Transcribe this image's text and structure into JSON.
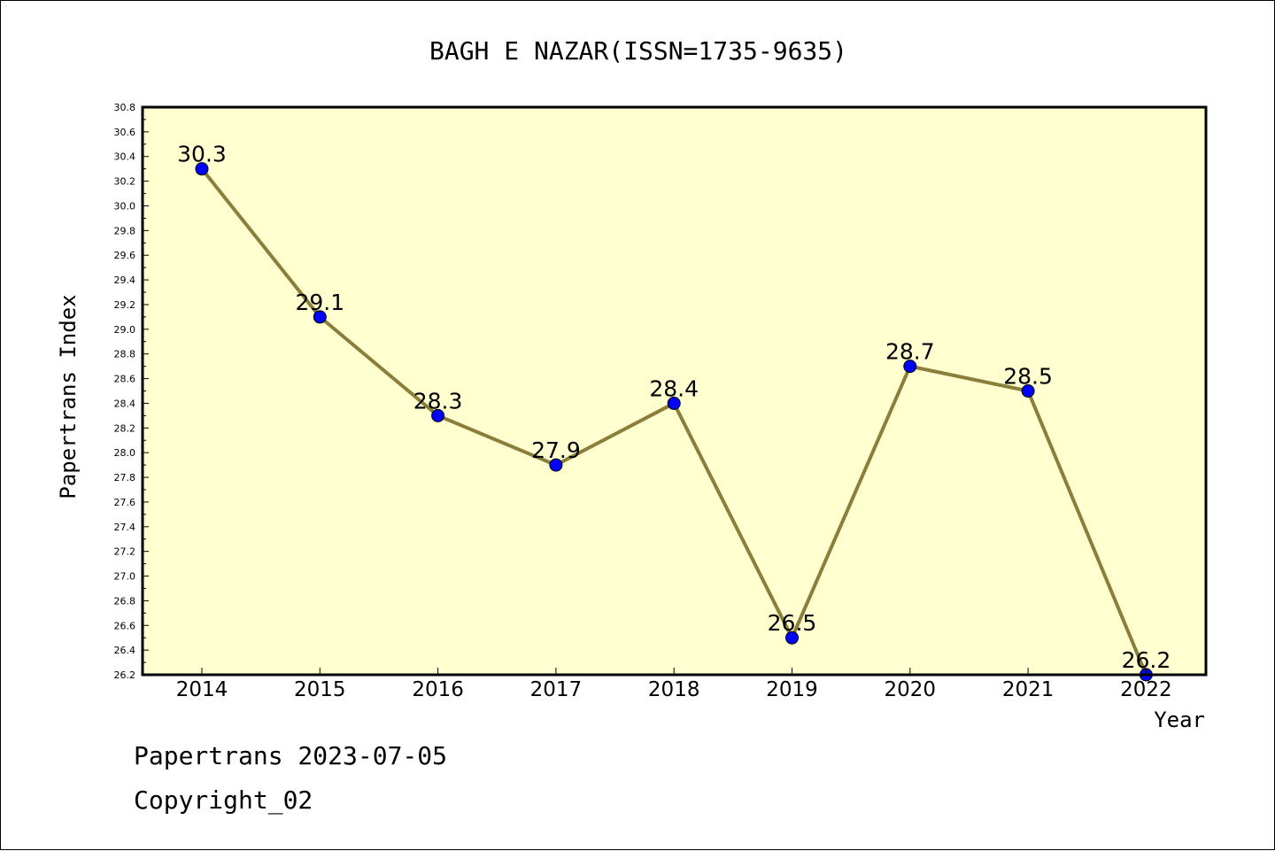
{
  "chart_data": {
    "type": "line",
    "title": "BAGH E NAZAR(ISSN=1735-9635)",
    "xlabel": "Year",
    "ylabel": "Papertrans Index",
    "categories": [
      "2014",
      "2015",
      "2016",
      "2017",
      "2018",
      "2019",
      "2020",
      "2021",
      "2022"
    ],
    "values": [
      30.3,
      29.1,
      28.3,
      27.9,
      28.4,
      26.5,
      28.7,
      28.5,
      26.2
    ],
    "data_labels": [
      "30.3",
      "29.1",
      "28.3",
      "27.9",
      "28.4",
      "26.5",
      "28.7",
      "28.5",
      "26.2"
    ],
    "ylim": [
      26.2,
      30.8
    ],
    "yticks": [
      "26.2",
      "26.4",
      "26.6",
      "26.8",
      "27.0",
      "27.2",
      "27.4",
      "27.6",
      "27.8",
      "28.0",
      "28.2",
      "28.4",
      "28.6",
      "28.8",
      "29.0",
      "29.2",
      "29.4",
      "29.6",
      "29.8",
      "30.0",
      "30.2",
      "30.4",
      "30.6",
      "30.8"
    ],
    "grid": false,
    "colors": {
      "plot_background": "#ffffd0",
      "line": "#8b7d3a",
      "marker": "#0000ff"
    }
  },
  "footer": {
    "line1": "Papertrans 2023-07-05",
    "line2": "Copyright_02"
  }
}
